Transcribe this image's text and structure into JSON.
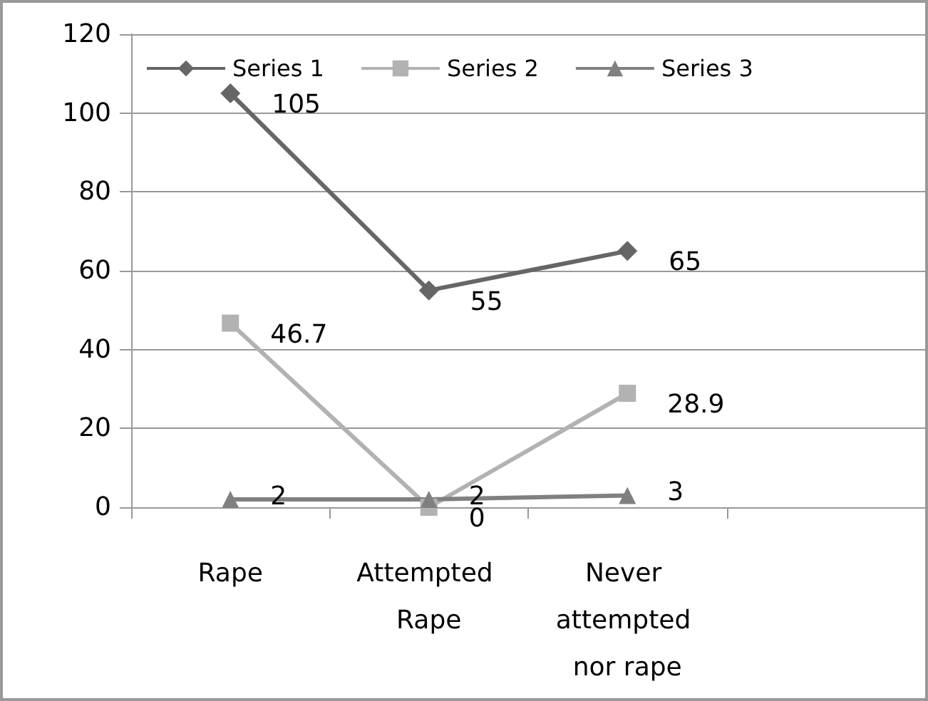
{
  "chart_data": {
    "type": "line",
    "categories": [
      "Rape",
      "Attempted Rape",
      "Never attempted nor rape",
      null
    ],
    "series": [
      {
        "name": "Series 1",
        "color": "#666666",
        "marker": "diamond",
        "values": [
          105,
          55,
          65,
          null
        ]
      },
      {
        "name": "Series 2",
        "color": "#b2b2b2",
        "marker": "square",
        "values": [
          46.7,
          0,
          28.9,
          null
        ]
      },
      {
        "name": "Series 3",
        "color": "#808080",
        "marker": "triangle",
        "values": [
          2,
          2,
          3,
          null
        ]
      }
    ],
    "ylim": [
      0,
      120
    ],
    "yticks": [
      0,
      20,
      40,
      60,
      80,
      100,
      120
    ],
    "grid": "y",
    "legend": "top left",
    "data_labels": true
  }
}
